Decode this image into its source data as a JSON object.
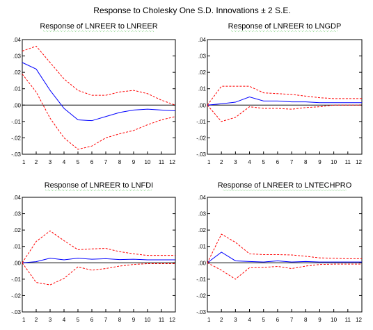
{
  "figure": {
    "title": "Response to Cholesky One S.D. Innovations ± 2 S.E."
  },
  "colors": {
    "response": "#0000ff",
    "bands": "#ff0000",
    "zero_line": "#000000",
    "frame": "#000000",
    "squiggle": "#3cb43c"
  },
  "chart_data": [
    {
      "type": "line",
      "title": "Response of LNREER to LNREER",
      "x": [
        1,
        2,
        3,
        4,
        5,
        6,
        7,
        8,
        9,
        10,
        11,
        12
      ],
      "x_tick_labels": [
        "1",
        "2",
        "3",
        "4",
        "5",
        "6",
        "7",
        "8",
        "9",
        "10",
        "11",
        "12"
      ],
      "ylim": [
        -0.03,
        0.04
      ],
      "y_tick_labels": [
        ".04",
        ".03",
        ".02",
        ".01",
        ".00",
        "-.01",
        "-.02",
        "-.03"
      ],
      "series": [
        {
          "role": "response",
          "values": [
            0.026,
            0.022,
            0.009,
            -0.002,
            -0.009,
            -0.0095,
            -0.007,
            -0.0045,
            -0.003,
            -0.0025,
            -0.003,
            -0.0035
          ]
        },
        {
          "role": "upper",
          "values": [
            0.033,
            0.036,
            0.026,
            0.016,
            0.009,
            0.006,
            0.006,
            0.008,
            0.009,
            0.007,
            0.003,
            0.0
          ]
        },
        {
          "role": "lower",
          "values": [
            0.019,
            0.008,
            -0.008,
            -0.02,
            -0.027,
            -0.025,
            -0.02,
            -0.0175,
            -0.0155,
            -0.012,
            -0.009,
            -0.007
          ]
        }
      ]
    },
    {
      "type": "line",
      "title": "Response of LNREER to LNGDP",
      "x": [
        1,
        2,
        3,
        4,
        5,
        6,
        7,
        8,
        9,
        10,
        11,
        12
      ],
      "x_tick_labels": [
        "1",
        "2",
        "3",
        "4",
        "5",
        "6",
        "7",
        "8",
        "9",
        "10",
        "11",
        "12"
      ],
      "ylim": [
        -0.03,
        0.04
      ],
      "y_tick_labels": [
        ".04",
        ".03",
        ".02",
        ".01",
        ".00",
        "-.01",
        "-.02",
        "-.03"
      ],
      "series": [
        {
          "role": "response",
          "values": [
            0.0,
            0.0008,
            0.0018,
            0.005,
            0.0025,
            0.0025,
            0.002,
            0.002,
            0.0015,
            0.0015,
            0.0015,
            0.0015
          ]
        },
        {
          "role": "upper",
          "values": [
            0.0,
            0.0115,
            0.0115,
            0.0115,
            0.0075,
            0.007,
            0.0065,
            0.0055,
            0.0045,
            0.004,
            0.004,
            0.004
          ]
        },
        {
          "role": "lower",
          "values": [
            0.0,
            -0.01,
            -0.0075,
            -0.001,
            -0.002,
            -0.002,
            -0.0025,
            -0.0015,
            -0.001,
            0.0,
            0.0,
            0.0
          ]
        }
      ]
    },
    {
      "type": "line",
      "title": "Response of LNREER to LNFDI",
      "x": [
        1,
        2,
        3,
        4,
        5,
        6,
        7,
        8,
        9,
        10,
        11,
        12
      ],
      "x_tick_labels": [
        "1",
        "2",
        "3",
        "4",
        "5",
        "6",
        "7",
        "8",
        "9",
        "10",
        "11",
        "12"
      ],
      "ylim": [
        -0.03,
        0.04
      ],
      "y_tick_labels": [
        ".04",
        ".03",
        ".02",
        ".01",
        ".00",
        "-.01",
        "-.02",
        "-.03"
      ],
      "series": [
        {
          "role": "response",
          "values": [
            0.0,
            0.0007,
            0.0028,
            0.0018,
            0.0028,
            0.0022,
            0.0025,
            0.002,
            0.0022,
            0.0018,
            0.0018,
            0.0018
          ]
        },
        {
          "role": "upper",
          "values": [
            0.0,
            0.013,
            0.0195,
            0.0135,
            0.008,
            0.0085,
            0.0088,
            0.0068,
            0.0055,
            0.0045,
            0.0045,
            0.0045
          ]
        },
        {
          "role": "lower",
          "values": [
            0.0,
            -0.012,
            -0.0135,
            -0.0095,
            -0.0025,
            -0.0045,
            -0.0035,
            -0.002,
            -0.001,
            -0.0005,
            -0.0005,
            -0.0005
          ]
        }
      ]
    },
    {
      "type": "line",
      "title": "Response of LNREER to LNTECHPRO",
      "x": [
        1,
        2,
        3,
        4,
        5,
        6,
        7,
        8,
        9,
        10,
        11,
        12
      ],
      "x_tick_labels": [
        "1",
        "2",
        "3",
        "4",
        "5",
        "6",
        "7",
        "8",
        "9",
        "10",
        "11",
        "12"
      ],
      "ylim": [
        -0.03,
        0.04
      ],
      "y_tick_labels": [
        ".04",
        ".03",
        ".02",
        ".01",
        ".00",
        "-.01",
        "-.02",
        "-.03"
      ],
      "series": [
        {
          "role": "response",
          "values": [
            0.0,
            0.0065,
            0.0012,
            0.0008,
            0.0005,
            0.0012,
            0.0005,
            0.0008,
            0.0005,
            0.0005,
            0.0005,
            0.0005
          ]
        },
        {
          "role": "upper",
          "values": [
            0.0,
            0.0175,
            0.0125,
            0.0055,
            0.005,
            0.005,
            0.0048,
            0.004,
            0.003,
            0.0028,
            0.0025,
            0.0025
          ]
        },
        {
          "role": "lower",
          "values": [
            0.0,
            -0.0045,
            -0.01,
            -0.003,
            -0.0028,
            -0.0022,
            -0.0035,
            -0.002,
            -0.001,
            -0.0008,
            -0.0008,
            -0.0008
          ]
        }
      ]
    }
  ]
}
